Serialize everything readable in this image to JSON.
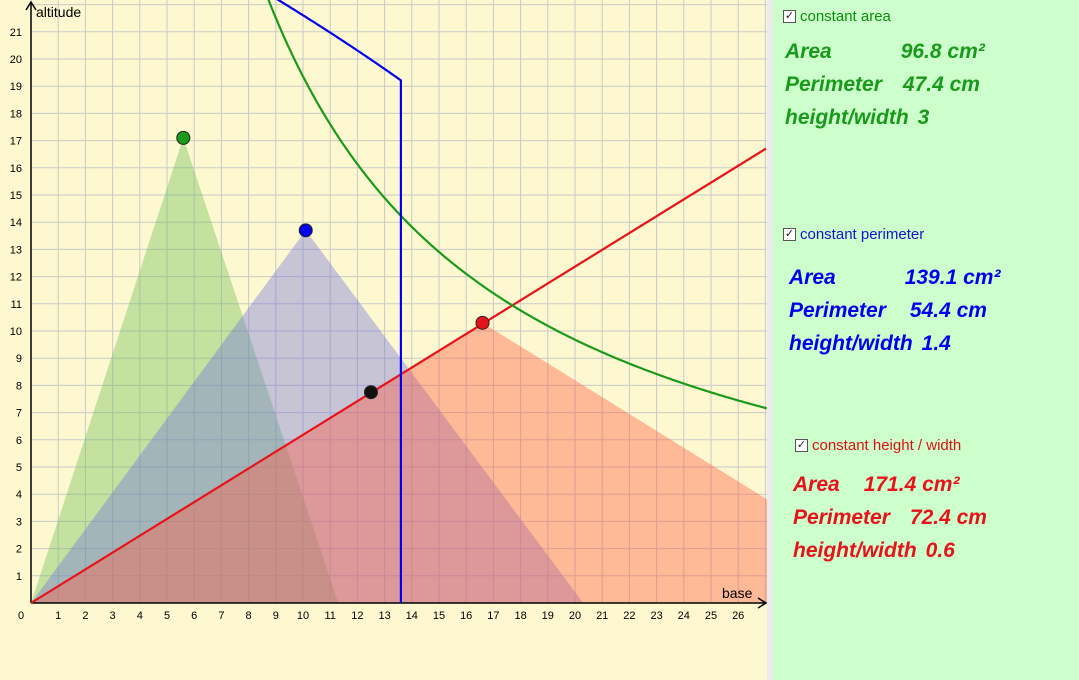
{
  "axes": {
    "x_label": "base",
    "y_label": "altitude",
    "x_ticks": [
      "0",
      "1",
      "2",
      "3",
      "4",
      "5",
      "6",
      "7",
      "8",
      "9",
      "10",
      "11",
      "12",
      "13",
      "14",
      "15",
      "16",
      "17",
      "18",
      "19",
      "20",
      "21",
      "22",
      "23",
      "24",
      "25",
      "26"
    ],
    "y_ticks": [
      "1",
      "2",
      "3",
      "4",
      "5",
      "6",
      "7",
      "8",
      "9",
      "10",
      "11",
      "12",
      "13",
      "14",
      "15",
      "16",
      "17",
      "18",
      "19",
      "20",
      "21"
    ],
    "x_range": [
      0,
      27
    ],
    "y_range": [
      0,
      22
    ]
  },
  "colors": {
    "graph_bg": "#fdf8cf",
    "panel_bg": "#ccffcc",
    "green": "#1a9a1a",
    "blue": "#0000ee",
    "red": "#e8121a",
    "grid": "#c9c9c9"
  },
  "curves": {
    "constant_area_product": 96.8,
    "constant_perimeter_value": 54.4,
    "ratio_line_slope": 0.6
  },
  "points": {
    "green": {
      "x": 5.6,
      "y": 17.1
    },
    "blue": {
      "x": 10.1,
      "y": 13.7
    },
    "red": {
      "x": 16.6,
      "y": 10.3
    },
    "black": {
      "x": 12.5,
      "y": 7.75
    }
  },
  "triangles": {
    "green_base": 11.3,
    "blue_base": 20.3,
    "red_base": 33.2
  },
  "panel": {
    "area_section": {
      "checkbox_label": "constant area",
      "checked": true,
      "area_label": "Area",
      "area_value": "96.8 cm²",
      "perimeter_label": "Perimeter",
      "perimeter_value": "47.4 cm",
      "ratio_label": "height/width",
      "ratio_value": "3"
    },
    "perimeter_section": {
      "checkbox_label": "constant perimeter",
      "checked": true,
      "area_label": "Area",
      "area_value": "139.1 cm²",
      "perimeter_label": "Perimeter",
      "perimeter_value": "54.4 cm",
      "ratio_label": "height/width",
      "ratio_value": "1.4"
    },
    "ratio_section": {
      "checkbox_label": "constant height / width",
      "checked": true,
      "area_label": "Area",
      "area_value": "171.4 cm²",
      "perimeter_label": "Perimeter",
      "perimeter_value": "72.4 cm",
      "ratio_label": "height/width",
      "ratio_value": "0.6"
    }
  }
}
